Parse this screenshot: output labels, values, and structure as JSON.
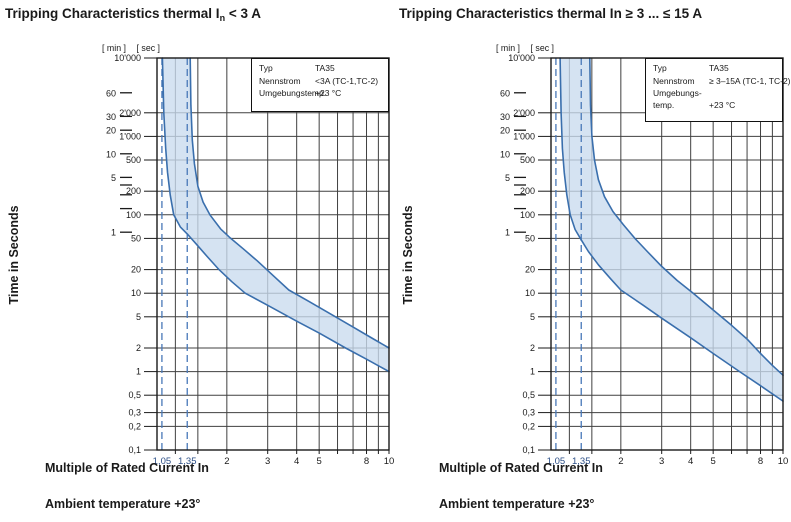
{
  "colors": {
    "curve": "#3a6fad",
    "band_fill": "#c9dbee",
    "dashed": "#4878b8",
    "dashed_label": "#2c4f87",
    "grid": "#404040",
    "frame": "#1a1a1a",
    "text": "#1a1a1a",
    "background": "#ffffff"
  },
  "chart_data": [
    {
      "type": "area",
      "title": {
        "pre": "Tripping Characteristics thermal I",
        "sub": "n",
        "post": " < 3 A"
      },
      "y_axis_title": "Time in Seconds",
      "y_axis_units": [
        "[ min ]",
        "[ sec ]"
      ],
      "x_label": "Multiple of Rated Current In",
      "footer": "Ambient temperature +23°",
      "x_range": [
        1,
        10
      ],
      "y_range_seconds": [
        0.1,
        10000
      ],
      "x_scale": "log",
      "y_scale": "log",
      "grid": true,
      "x_ticks": [
        {
          "v": 1.05,
          "label": "1,05",
          "dashed": true
        },
        {
          "v": 1.2,
          "label": "",
          "dashed": false
        },
        {
          "v": 1.35,
          "label": "1,35",
          "dashed": true
        },
        {
          "v": 1.5,
          "label": "",
          "dashed": false
        },
        {
          "v": 2,
          "label": "2",
          "dashed": false
        },
        {
          "v": 3,
          "label": "3",
          "dashed": false
        },
        {
          "v": 4,
          "label": "4",
          "dashed": false
        },
        {
          "v": 5,
          "label": "5",
          "dashed": false
        },
        {
          "v": 6,
          "label": "",
          "dashed": false
        },
        {
          "v": 7,
          "label": "",
          "dashed": false
        },
        {
          "v": 8,
          "label": "8",
          "dashed": false
        },
        {
          "v": 9,
          "label": "",
          "dashed": false
        },
        {
          "v": 10,
          "label": "10",
          "dashed": false
        }
      ],
      "y_sec_ticks": [
        {
          "v": 10000,
          "label": "10'000"
        },
        {
          "v": 2000,
          "label": "2'000"
        },
        {
          "v": 1000,
          "label": "1'000"
        },
        {
          "v": 500,
          "label": "500"
        },
        {
          "v": 200,
          "label": "200"
        },
        {
          "v": 100,
          "label": "100"
        },
        {
          "v": 50,
          "label": "50"
        },
        {
          "v": 20,
          "label": "20"
        },
        {
          "v": 10,
          "label": "10"
        },
        {
          "v": 5,
          "label": "5"
        },
        {
          "v": 2,
          "label": "2"
        },
        {
          "v": 1,
          "label": "1"
        },
        {
          "v": 0.5,
          "label": "0,5"
        },
        {
          "v": 0.3,
          "label": "0,3"
        },
        {
          "v": 0.2,
          "label": "0,2"
        },
        {
          "v": 0.1,
          "label": "0,1"
        }
      ],
      "y_min_ticks": [
        {
          "v": 60,
          "label": "60"
        },
        {
          "v": 30,
          "label": "30"
        },
        {
          "v": 20,
          "label": "20"
        },
        {
          "v": 10,
          "label": "10"
        },
        {
          "v": 5,
          "label": "5"
        },
        {
          "v": 4,
          "label": ""
        },
        {
          "v": 3,
          "label": ""
        },
        {
          "v": 2,
          "label": ""
        },
        {
          "v": 1,
          "label": "1"
        }
      ],
      "series": [
        {
          "name": "lower-tripping-limit",
          "points": [
            [
              1.055,
              10000
            ],
            [
              1.07,
              2000
            ],
            [
              1.09,
              700
            ],
            [
              1.11,
              350
            ],
            [
              1.14,
              180
            ],
            [
              1.18,
              100
            ],
            [
              1.26,
              70
            ],
            [
              1.35,
              57
            ],
            [
              1.48,
              42
            ],
            [
              1.65,
              29
            ],
            [
              1.85,
              20
            ],
            [
              2.1,
              14
            ],
            [
              2.4,
              10
            ],
            [
              3,
              7
            ],
            [
              4,
              4.4
            ],
            [
              5,
              3.1
            ],
            [
              6.5,
              2
            ],
            [
              8,
              1.44
            ],
            [
              10,
              1
            ]
          ]
        },
        {
          "name": "upper-tripping-limit",
          "points": [
            [
              1.39,
              10000
            ],
            [
              1.4,
              2500
            ],
            [
              1.42,
              900
            ],
            [
              1.45,
              450
            ],
            [
              1.5,
              230
            ],
            [
              1.58,
              145
            ],
            [
              1.69,
              100
            ],
            [
              1.88,
              66
            ],
            [
              2.05,
              52
            ],
            [
              2.35,
              37
            ],
            [
              2.7,
              26
            ],
            [
              3.15,
              17
            ],
            [
              3.7,
              11
            ],
            [
              4.5,
              7.9
            ],
            [
              5.5,
              5.6
            ],
            [
              7,
              3.7
            ],
            [
              8.5,
              2.64
            ],
            [
              10,
              2
            ]
          ]
        }
      ],
      "legend": {
        "rows": [
          {
            "label": "Typ",
            "value": "TA35"
          },
          {
            "label": "Nennstrom",
            "value": "<3A (TC-1,TC-2)"
          },
          {
            "label": "Umgebungstemp.",
            "value": "+23 °C"
          }
        ]
      }
    },
    {
      "type": "area",
      "title": {
        "pre": "Tripping Characteristics thermal In ≥ 3 ... ≤ 15 A",
        "sub": "",
        "post": ""
      },
      "y_axis_title": "Time in Seconds",
      "y_axis_units": [
        "[ min ]",
        "[ sec ]"
      ],
      "x_label": "Multiple of Rated Current In",
      "footer": "Ambient temperature +23°",
      "x_range": [
        1,
        10
      ],
      "y_range_seconds": [
        0.1,
        10000
      ],
      "x_scale": "log",
      "y_scale": "log",
      "grid": true,
      "x_ticks": [
        {
          "v": 1.05,
          "label": "1,05",
          "dashed": true
        },
        {
          "v": 1.2,
          "label": "",
          "dashed": false
        },
        {
          "v": 1.35,
          "label": "1,35",
          "dashed": true
        },
        {
          "v": 1.5,
          "label": "",
          "dashed": false
        },
        {
          "v": 2,
          "label": "2",
          "dashed": false
        },
        {
          "v": 3,
          "label": "3",
          "dashed": false
        },
        {
          "v": 4,
          "label": "4",
          "dashed": false
        },
        {
          "v": 5,
          "label": "5",
          "dashed": false
        },
        {
          "v": 6,
          "label": "",
          "dashed": false
        },
        {
          "v": 7,
          "label": "",
          "dashed": false
        },
        {
          "v": 8,
          "label": "8",
          "dashed": false
        },
        {
          "v": 9,
          "label": "",
          "dashed": false
        },
        {
          "v": 10,
          "label": "10",
          "dashed": false
        }
      ],
      "y_sec_ticks": [
        {
          "v": 10000,
          "label": "10'000"
        },
        {
          "v": 2000,
          "label": "2'000"
        },
        {
          "v": 1000,
          "label": "1'000"
        },
        {
          "v": 500,
          "label": "500"
        },
        {
          "v": 200,
          "label": "200"
        },
        {
          "v": 100,
          "label": "100"
        },
        {
          "v": 50,
          "label": "50"
        },
        {
          "v": 20,
          "label": "20"
        },
        {
          "v": 10,
          "label": "10"
        },
        {
          "v": 5,
          "label": "5"
        },
        {
          "v": 2,
          "label": "2"
        },
        {
          "v": 1,
          "label": "1"
        },
        {
          "v": 0.5,
          "label": "0,5"
        },
        {
          "v": 0.3,
          "label": "0,3"
        },
        {
          "v": 0.2,
          "label": "0,2"
        },
        {
          "v": 0.1,
          "label": "0,1"
        }
      ],
      "y_min_ticks": [
        {
          "v": 60,
          "label": "60"
        },
        {
          "v": 30,
          "label": "30"
        },
        {
          "v": 20,
          "label": "20"
        },
        {
          "v": 10,
          "label": "10"
        },
        {
          "v": 5,
          "label": "5"
        },
        {
          "v": 4,
          "label": ""
        },
        {
          "v": 3,
          "label": ""
        },
        {
          "v": 2,
          "label": ""
        },
        {
          "v": 1,
          "label": "1"
        }
      ],
      "series": [
        {
          "name": "lower-tripping-limit",
          "points": [
            [
              1.095,
              10000
            ],
            [
              1.105,
              2000
            ],
            [
              1.12,
              700
            ],
            [
              1.14,
              350
            ],
            [
              1.17,
              180
            ],
            [
              1.21,
              100
            ],
            [
              1.27,
              65
            ],
            [
              1.35,
              48
            ],
            [
              1.45,
              34
            ],
            [
              1.6,
              23
            ],
            [
              1.8,
              15.5
            ],
            [
              2,
              11
            ],
            [
              2.5,
              7
            ],
            [
              3,
              4.8
            ],
            [
              4,
              2.7
            ],
            [
              5,
              1.7
            ],
            [
              6.5,
              1
            ],
            [
              8,
              0.66
            ],
            [
              10,
              0.42
            ]
          ]
        },
        {
          "name": "upper-tripping-limit",
          "points": [
            [
              1.47,
              10000
            ],
            [
              1.48,
              2500
            ],
            [
              1.5,
              1000
            ],
            [
              1.54,
              500
            ],
            [
              1.6,
              280
            ],
            [
              1.7,
              170
            ],
            [
              1.85,
              110
            ],
            [
              2.05,
              75
            ],
            [
              2.3,
              50
            ],
            [
              2.6,
              34
            ],
            [
              3,
              22
            ],
            [
              3.5,
              14.5
            ],
            [
              4.1,
              10
            ],
            [
              5,
              6.1
            ],
            [
              6,
              3.9
            ],
            [
              7,
              2.6
            ],
            [
              8,
              1.7
            ],
            [
              9,
              1.2
            ],
            [
              10,
              0.9
            ]
          ]
        }
      ],
      "legend": {
        "rows": [
          {
            "label": "Typ",
            "value": "TA35"
          },
          {
            "label": "Nennstrom",
            "value": "≥ 3–15A (TC-1, TC-2)"
          },
          {
            "label": "Umgebungs-\ntemp.",
            "value": "+23 °C"
          }
        ]
      }
    }
  ]
}
